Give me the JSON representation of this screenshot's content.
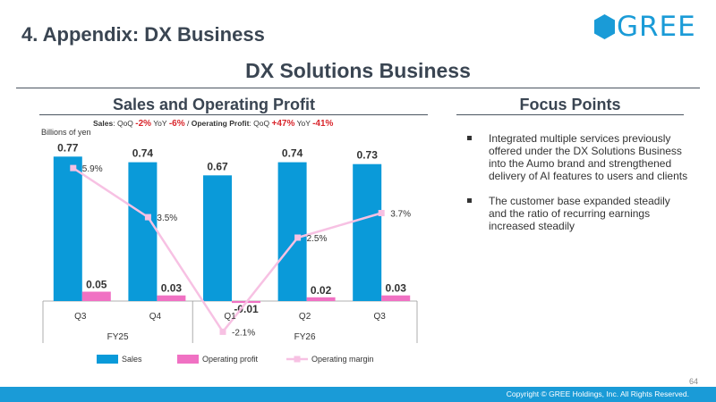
{
  "page": {
    "title": "4. Appendix: DX Business",
    "logo_text": "GREE",
    "section_title": "DX Solutions Business",
    "left_title": "Sales and Operating Profit",
    "right_title": "Focus Points",
    "page_number": "64",
    "copyright": "Copyright © GREE Holdings, Inc. All Rights Reserved."
  },
  "metrics": {
    "sales_label": "Sales",
    "qoq_label": "QoQ",
    "yoy_label": "YoY",
    "sales_qoq": "-2%",
    "sales_yoy": "-6%",
    "separator": "/",
    "op_label": "Operating Profit",
    "op_qoq": "+47%",
    "op_yoy": "-41%"
  },
  "focus_points": [
    "Integrated multiple services previously offered under the DX Solutions Business into the Aumo brand and strengthened delivery of AI features to users and clients",
    "The customer base expanded steadily and the ratio of recurring earnings increased steadily"
  ],
  "chart_data": {
    "type": "bar",
    "unit_label": "Billions of yen",
    "categories": [
      "Q3",
      "Q4",
      "Q1",
      "Q2",
      "Q3"
    ],
    "groups": [
      {
        "label": "FY25",
        "span": 2
      },
      {
        "label": "FY26",
        "span": 3
      }
    ],
    "series": [
      {
        "name": "Sales",
        "type": "bar",
        "color": "#0a9ad9",
        "values": [
          0.77,
          0.74,
          0.67,
          0.74,
          0.73
        ],
        "labels": [
          "0.77",
          "0.74",
          "0.67",
          "0.74",
          "0.73"
        ]
      },
      {
        "name": "Operating profit",
        "type": "bar",
        "color": "#f071c3",
        "values": [
          0.05,
          0.03,
          -0.01,
          0.02,
          0.03
        ],
        "labels": [
          "0.05",
          "0.03",
          "-0.01",
          "0.02",
          "0.03"
        ]
      },
      {
        "name": "Operating margin",
        "type": "line",
        "color": "#f7c1e3",
        "values": [
          5.9,
          3.5,
          -2.1,
          2.5,
          3.7
        ],
        "labels": [
          "5.9%",
          "3.5%",
          "-2.1%",
          "2.5%",
          "3.7%"
        ]
      }
    ],
    "ylim": [
      0,
      0.8
    ],
    "y2lim": [
      -3,
      8
    ],
    "legend_position": "bottom"
  }
}
